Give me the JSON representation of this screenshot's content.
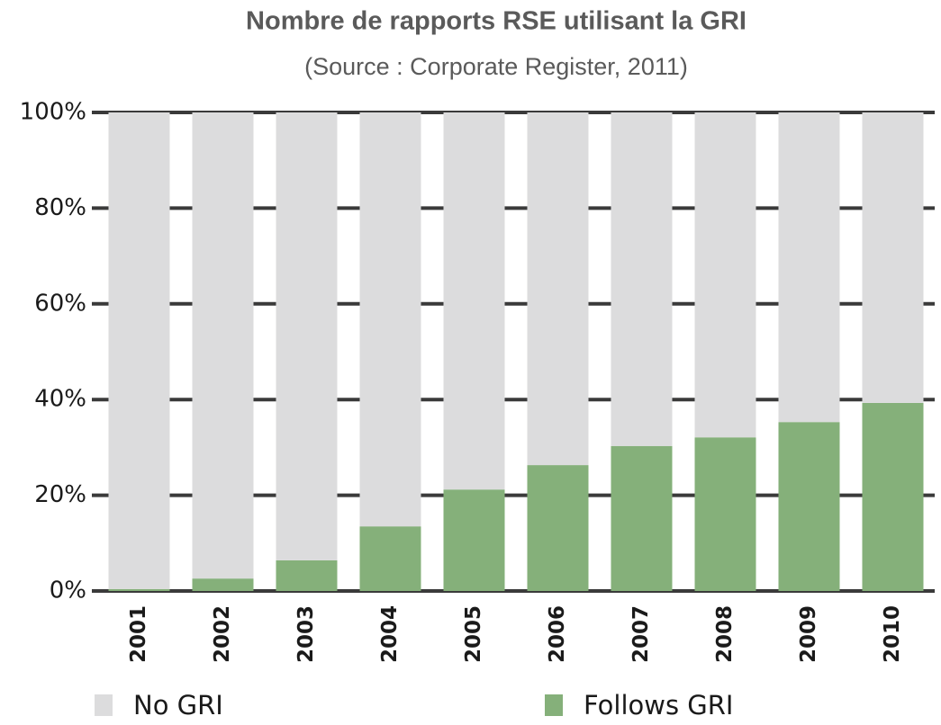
{
  "chart_data": {
    "type": "stacked_bar",
    "title": "Nombre de rapports RSE utilisant la GRI",
    "subtitle": "(Source : Corporate Register, 2011)",
    "categories": [
      "2001",
      "2002",
      "2003",
      "2004",
      "2005",
      "2006",
      "2007",
      "2008",
      "2009",
      "2010"
    ],
    "series": [
      {
        "name": "No GRI",
        "color": "#dcdcdd",
        "values": [
          99.6,
          97.4,
          93.6,
          86.5,
          78.8,
          73.7,
          69.7,
          67.9,
          64.7,
          60.7
        ]
      },
      {
        "name": "Follows GRI",
        "color": "#85b07a",
        "values": [
          0.4,
          2.6,
          6.4,
          13.5,
          21.2,
          26.3,
          30.3,
          32.1,
          35.3,
          39.3
        ]
      }
    ],
    "ylim": [
      0,
      100
    ],
    "yticks": [
      {
        "value": 0,
        "label": "0%"
      },
      {
        "value": 20,
        "label": "20%"
      },
      {
        "value": 40,
        "label": "40%"
      },
      {
        "value": 60,
        "label": "60%"
      },
      {
        "value": 80,
        "label": "80%"
      },
      {
        "value": 100,
        "label": "100%"
      }
    ],
    "grid": true
  }
}
